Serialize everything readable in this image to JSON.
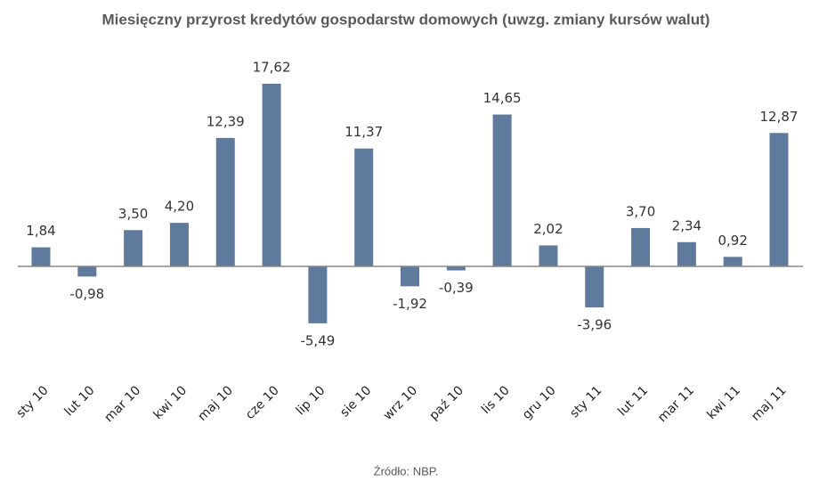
{
  "chart_data": {
    "type": "bar",
    "title": "Miesięczny przyrost kredytów gospodarstw domowych (uwzg. zmiany kursów walut)",
    "source": "Źródło: NBP.",
    "categories": [
      "sty 10",
      "lut 10",
      "mar 10",
      "kwi 10",
      "maj 10",
      "cze 10",
      "lip 10",
      "sie 10",
      "wrz 10",
      "paź 10",
      "lis 10",
      "gru 10",
      "sty 11",
      "lut 11",
      "mar 11",
      "kwi 11",
      "maj 11"
    ],
    "values": [
      1.84,
      -0.98,
      3.5,
      4.2,
      12.39,
      17.62,
      -5.49,
      11.37,
      -1.92,
      -0.39,
      14.65,
      2.02,
      -3.96,
      3.7,
      2.34,
      0.92,
      12.87
    ],
    "value_labels": [
      "1,84",
      "-0,98",
      "3,50",
      "4,20",
      "12,39",
      "17,62",
      "-5,49",
      "11,37",
      "-1,92",
      "-0,39",
      "14,65",
      "2,02",
      "-3,96",
      "3,70",
      "2,34",
      "0,92",
      "12,87"
    ],
    "color": "#5f7a9c"
  }
}
